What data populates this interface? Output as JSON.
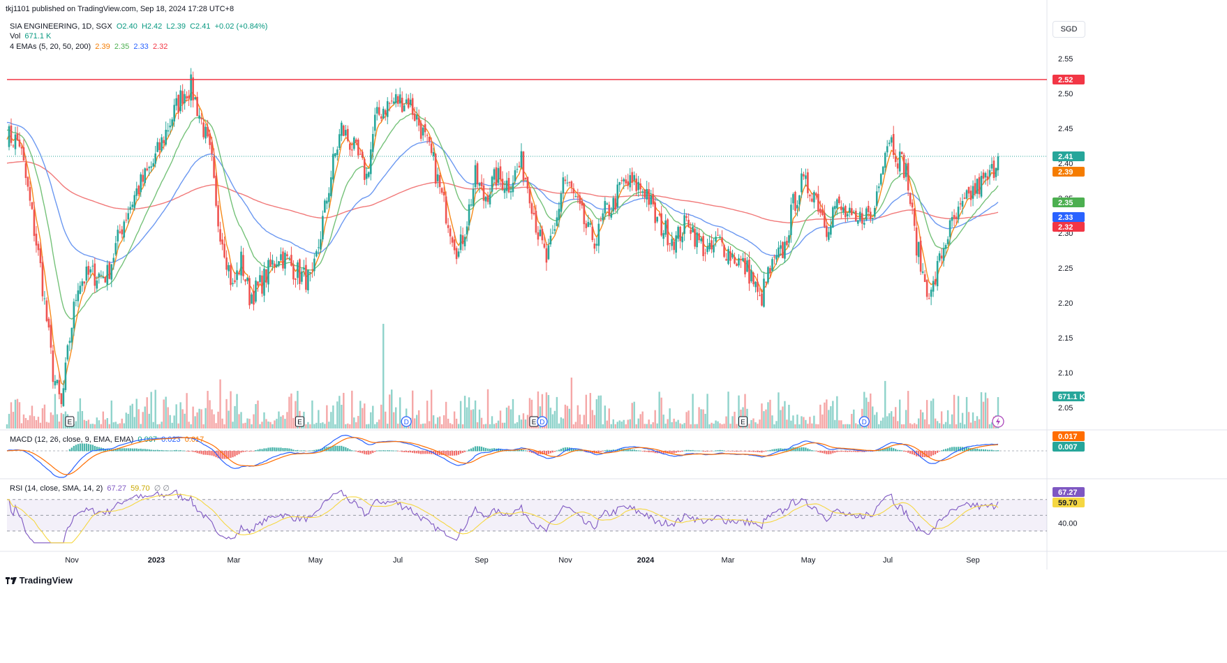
{
  "header": {
    "published": "tkj1101 published on TradingView.com, Sep 18, 2024 17:28 UTC+8",
    "symbol": "SIA ENGINEERING, 1D, SGX",
    "open": "O2.40",
    "high": "H2.42",
    "low": "L2.39",
    "close": "C2.41",
    "change": "+0.02 (+0.84%)",
    "vol_label": "Vol",
    "vol_value": "671.1 K",
    "ema_label": "4 EMAs (5, 20, 50, 200)",
    "ema5": "2.39",
    "ema20": "2.35",
    "ema50": "2.33",
    "ema200": "2.32",
    "currency": "SGD"
  },
  "macd": {
    "label": "MACD (12, 26, close, 9, EMA, EMA)",
    "hist": "0.007",
    "macd": "0.023",
    "signal": "0.017",
    "badge_signal": "0.017",
    "badge_hist": "0.007"
  },
  "rsi": {
    "label": "RSI (14, close, SMA, 14, 2)",
    "rsi": "67.27",
    "sma": "59.70",
    "extra": "∅ ∅",
    "badge_rsi": "67.27",
    "badge_sma": "59.70",
    "axis_label": "40.00"
  },
  "price_axis": {
    "ticks": [
      "2.55",
      "2.50",
      "2.45",
      "2.40",
      "2.35",
      "2.30",
      "2.25",
      "2.20",
      "2.15",
      "2.10",
      "2.05"
    ],
    "tick_values": [
      2.55,
      2.5,
      2.45,
      2.4,
      2.35,
      2.3,
      2.25,
      2.2,
      2.15,
      2.1,
      2.05
    ],
    "resistance_badge": "2.52",
    "price_badge": "2.41",
    "ema5_badge": "2.39",
    "ema20_badge": "2.35",
    "ema50_badge": "2.33",
    "ema200_badge": "2.32",
    "vol_badge": "671.1 K"
  },
  "time_axis": {
    "labels": [
      "Nov",
      "2023",
      "Mar",
      "May",
      "Jul",
      "Sep",
      "Nov",
      "2024",
      "Mar",
      "May",
      "Jul",
      "Sep"
    ]
  },
  "events": [
    "E",
    "E",
    "D",
    "E",
    "D",
    "E",
    "D"
  ],
  "footer": {
    "brand": "TradingView"
  },
  "colors": {
    "up": "#26a69a",
    "down": "#ef5350",
    "ema5": "#f57c00",
    "ema20": "#66bb6a",
    "ema50": "#5b8def",
    "ema200": "#ef6a6a",
    "resistance": "#f23645",
    "macd_line": "#2962ff",
    "signal_line": "#ff6d00",
    "rsi_line": "#7e57c2",
    "rsi_sma": "#f5d742"
  },
  "chart_data": {
    "type": "candlestick",
    "title": "SIA ENGINEERING, 1D, SGX",
    "ylim": [
      2.03,
      2.57
    ],
    "resistance_level": 2.52,
    "last_price": 2.41,
    "anchors": [
      [
        0,
        2.44
      ],
      [
        6,
        2.43
      ],
      [
        10,
        2.36
      ],
      [
        16,
        2.25
      ],
      [
        22,
        2.1
      ],
      [
        26,
        2.05
      ],
      [
        30,
        2.15
      ],
      [
        34,
        2.23
      ],
      [
        40,
        2.24
      ],
      [
        48,
        2.24
      ],
      [
        56,
        2.32
      ],
      [
        62,
        2.36
      ],
      [
        70,
        2.4
      ],
      [
        78,
        2.46
      ],
      [
        84,
        2.5
      ],
      [
        88,
        2.51
      ],
      [
        94,
        2.45
      ],
      [
        98,
        2.4
      ],
      [
        100,
        2.33
      ],
      [
        104,
        2.28
      ],
      [
        108,
        2.22
      ],
      [
        112,
        2.26
      ],
      [
        116,
        2.21
      ],
      [
        120,
        2.22
      ],
      [
        126,
        2.25
      ],
      [
        130,
        2.27
      ],
      [
        134,
        2.26
      ],
      [
        140,
        2.24
      ],
      [
        146,
        2.23
      ],
      [
        150,
        2.3
      ],
      [
        156,
        2.4
      ],
      [
        160,
        2.45
      ],
      [
        166,
        2.42
      ],
      [
        172,
        2.38
      ],
      [
        176,
        2.46
      ],
      [
        180,
        2.48
      ],
      [
        186,
        2.49
      ],
      [
        192,
        2.49
      ],
      [
        198,
        2.45
      ],
      [
        204,
        2.4
      ],
      [
        208,
        2.35
      ],
      [
        212,
        2.31
      ],
      [
        216,
        2.27
      ],
      [
        220,
        2.32
      ],
      [
        224,
        2.38
      ],
      [
        228,
        2.35
      ],
      [
        234,
        2.38
      ],
      [
        240,
        2.37
      ],
      [
        246,
        2.4
      ],
      [
        250,
        2.36
      ],
      [
        254,
        2.3
      ],
      [
        258,
        2.26
      ],
      [
        262,
        2.3
      ],
      [
        266,
        2.38
      ],
      [
        270,
        2.36
      ],
      [
        274,
        2.33
      ],
      [
        278,
        2.3
      ],
      [
        282,
        2.29
      ],
      [
        286,
        2.33
      ],
      [
        290,
        2.34
      ],
      [
        294,
        2.37
      ],
      [
        300,
        2.37
      ],
      [
        306,
        2.36
      ],
      [
        310,
        2.32
      ],
      [
        316,
        2.3
      ],
      [
        320,
        2.29
      ],
      [
        326,
        2.32
      ],
      [
        330,
        2.29
      ],
      [
        336,
        2.27
      ],
      [
        340,
        2.29
      ],
      [
        346,
        2.27
      ],
      [
        350,
        2.26
      ],
      [
        356,
        2.24
      ],
      [
        360,
        2.2
      ],
      [
        364,
        2.24
      ],
      [
        368,
        2.26
      ],
      [
        372,
        2.28
      ],
      [
        376,
        2.34
      ],
      [
        380,
        2.37
      ],
      [
        386,
        2.36
      ],
      [
        392,
        2.31
      ],
      [
        396,
        2.34
      ],
      [
        400,
        2.33
      ],
      [
        406,
        2.31
      ],
      [
        410,
        2.33
      ],
      [
        414,
        2.32
      ],
      [
        418,
        2.4
      ],
      [
        422,
        2.44
      ],
      [
        426,
        2.41
      ],
      [
        430,
        2.39
      ],
      [
        434,
        2.3
      ],
      [
        438,
        2.24
      ],
      [
        442,
        2.21
      ],
      [
        446,
        2.26
      ],
      [
        450,
        2.3
      ],
      [
        454,
        2.32
      ],
      [
        458,
        2.34
      ],
      [
        462,
        2.36
      ],
      [
        466,
        2.37
      ],
      [
        470,
        2.38
      ],
      [
        474,
        2.41
      ]
    ],
    "series": [
      {
        "name": "SIA ENGINEERING",
        "last": 2.41
      },
      {
        "name": "Vol",
        "last": "671.1 K"
      },
      {
        "name": "EMA 5",
        "last": 2.39
      },
      {
        "name": "EMA 20",
        "last": 2.35
      },
      {
        "name": "EMA 50",
        "last": 2.33
      },
      {
        "name": "EMA 200",
        "last": 2.32
      },
      {
        "name": "MACD",
        "last": 0.023
      },
      {
        "name": "Signal",
        "last": 0.017
      },
      {
        "name": "Histogram",
        "last": 0.007
      },
      {
        "name": "RSI",
        "last": 67.27
      },
      {
        "name": "RSI SMA",
        "last": 59.7
      }
    ],
    "x_labels": [
      "Nov",
      "2023",
      "Mar",
      "May",
      "Jul",
      "Sep",
      "Nov",
      "2024",
      "Mar",
      "May",
      "Jul",
      "Sep"
    ],
    "grid": false
  }
}
